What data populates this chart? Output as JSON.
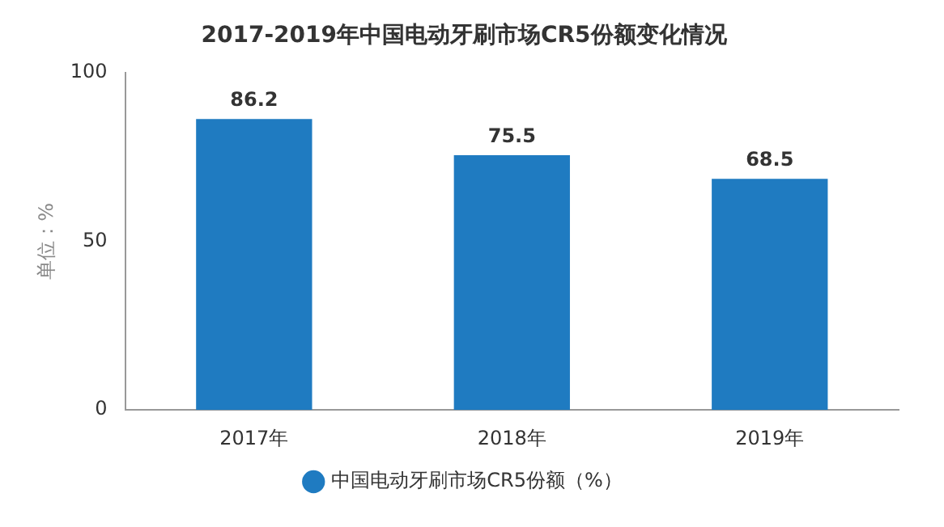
{
  "chart_data": {
    "type": "bar",
    "title": "2017-2019年中国电动牙刷市场CR5份额变化情况",
    "ylabel": "单位：%",
    "categories": [
      "2017年",
      "2018年",
      "2019年"
    ],
    "series": [
      {
        "name": "中国电动牙刷市场CR5份额（%）",
        "color": "#1f7bc1",
        "values": [
          86.2,
          75.5,
          68.5
        ]
      }
    ],
    "ylim": [
      0,
      100
    ],
    "yticks": [
      0,
      50,
      100
    ],
    "data_labels": true,
    "legend": "bottom"
  }
}
